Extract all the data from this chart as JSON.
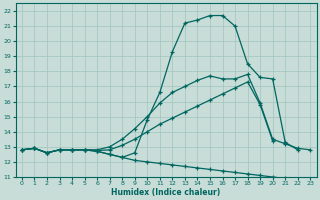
{
  "xlabel": "Humidex (Indice chaleur)",
  "bg_color": "#c8dcd8",
  "grid_color": "#a0c4bc",
  "line_color": "#006660",
  "xlim": [
    -0.5,
    23.5
  ],
  "ylim": [
    11,
    22.5
  ],
  "xticks": [
    0,
    1,
    2,
    3,
    4,
    5,
    6,
    7,
    8,
    9,
    10,
    11,
    12,
    13,
    14,
    15,
    16,
    17,
    18,
    19,
    20,
    21,
    22,
    23
  ],
  "yticks": [
    11,
    12,
    13,
    14,
    15,
    16,
    17,
    18,
    19,
    20,
    21,
    22
  ],
  "line_bot": {
    "x": [
      0,
      1,
      2,
      3,
      4,
      5,
      6,
      7,
      8,
      9,
      10,
      11,
      12,
      13,
      14,
      15,
      16,
      17,
      18,
      19,
      20,
      21,
      22,
      23
    ],
    "y": [
      12.8,
      12.9,
      12.6,
      12.8,
      12.8,
      12.8,
      12.7,
      12.5,
      12.3,
      12.1,
      12.0,
      11.9,
      11.8,
      11.7,
      11.6,
      11.5,
      11.4,
      11.3,
      11.2,
      11.1,
      11.0,
      10.9,
      10.85,
      10.8
    ]
  },
  "line_lmid": {
    "x": [
      0,
      1,
      2,
      3,
      4,
      5,
      6,
      7,
      8,
      9,
      10,
      11,
      12,
      13,
      14,
      15,
      16,
      17,
      18,
      19,
      20
    ],
    "y": [
      12.8,
      12.9,
      12.6,
      12.8,
      12.8,
      12.8,
      12.75,
      12.8,
      13.1,
      13.5,
      14.0,
      14.5,
      14.9,
      15.3,
      15.7,
      16.1,
      16.5,
      16.9,
      17.3,
      15.8,
      13.4
    ]
  },
  "line_umid": {
    "x": [
      0,
      1,
      2,
      3,
      4,
      5,
      6,
      7,
      8,
      9,
      10,
      11,
      12,
      13,
      14,
      15,
      16,
      17,
      18,
      19,
      20,
      21,
      22,
      23
    ],
    "y": [
      12.8,
      12.9,
      12.6,
      12.8,
      12.8,
      12.8,
      12.8,
      13.0,
      13.5,
      14.2,
      15.0,
      15.9,
      16.6,
      17.0,
      17.4,
      17.7,
      17.5,
      17.5,
      17.8,
      15.9,
      13.5,
      13.2,
      12.9,
      12.8
    ]
  },
  "line_top": {
    "x": [
      0,
      1,
      2,
      3,
      4,
      5,
      6,
      7,
      8,
      9,
      10,
      11,
      12,
      13,
      14,
      15,
      16,
      17,
      18,
      19,
      20,
      21,
      22
    ],
    "y": [
      12.8,
      12.9,
      12.6,
      12.8,
      12.8,
      12.8,
      12.7,
      12.5,
      12.3,
      12.6,
      14.8,
      16.6,
      19.3,
      21.2,
      21.4,
      21.7,
      21.7,
      21.0,
      18.5,
      17.6,
      17.5,
      13.3,
      12.8
    ]
  }
}
